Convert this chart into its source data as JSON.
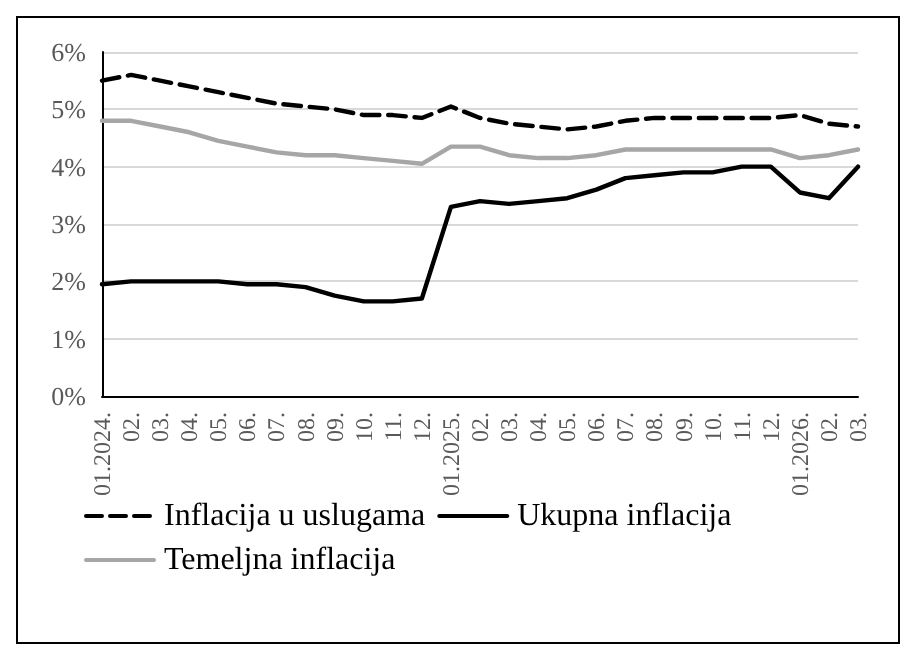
{
  "chart_data": {
    "type": "line",
    "categories": [
      "01.2024.",
      "02.",
      "03.",
      "04.",
      "05.",
      "06.",
      "07.",
      "08.",
      "09.",
      "10.",
      "11.",
      "12.",
      "01.2025.",
      "02.",
      "03.",
      "04.",
      "05.",
      "06.",
      "07.",
      "08.",
      "09.",
      "10.",
      "11.",
      "12.",
      "01.2026.",
      "02.",
      "03."
    ],
    "series": [
      {
        "name": "Inflacija u uslugama",
        "color": "#000000",
        "line_style": "dashed",
        "values": [
          5.5,
          5.6,
          5.5,
          5.4,
          5.3,
          5.2,
          5.1,
          5.05,
          5.0,
          4.9,
          4.9,
          4.85,
          5.05,
          4.85,
          4.75,
          4.7,
          4.65,
          4.7,
          4.8,
          4.85,
          4.85,
          4.85,
          4.85,
          4.85,
          4.9,
          4.75,
          4.7
        ]
      },
      {
        "name": "Ukupna inflacija",
        "color": "#000000",
        "line_style": "solid",
        "values": [
          1.95,
          2.0,
          2.0,
          2.0,
          2.0,
          1.95,
          1.95,
          1.9,
          1.75,
          1.65,
          1.65,
          1.7,
          3.3,
          3.4,
          3.35,
          3.4,
          3.45,
          3.6,
          3.8,
          3.85,
          3.9,
          3.9,
          4.0,
          4.0,
          3.55,
          3.45,
          4.0
        ]
      },
      {
        "name": "Temeljna inflacija",
        "color": "#a6a6a6",
        "line_style": "solid",
        "values": [
          4.8,
          4.8,
          4.7,
          4.6,
          4.45,
          4.35,
          4.25,
          4.2,
          4.2,
          4.15,
          4.1,
          4.05,
          4.35,
          4.35,
          4.2,
          4.15,
          4.15,
          4.2,
          4.3,
          4.3,
          4.3,
          4.3,
          4.3,
          4.3,
          4.15,
          4.2,
          4.3
        ]
      }
    ],
    "ylim": [
      0,
      6
    ],
    "yticks": [
      {
        "value": 0,
        "label": "0%"
      },
      {
        "value": 1,
        "label": "1%"
      },
      {
        "value": 2,
        "label": "2%"
      },
      {
        "value": 3,
        "label": "3%"
      },
      {
        "value": 4,
        "label": "4%"
      },
      {
        "value": 5,
        "label": "5%"
      },
      {
        "value": 6,
        "label": "6%"
      }
    ],
    "grid": "y",
    "legend": "bottom",
    "marker": "none"
  }
}
